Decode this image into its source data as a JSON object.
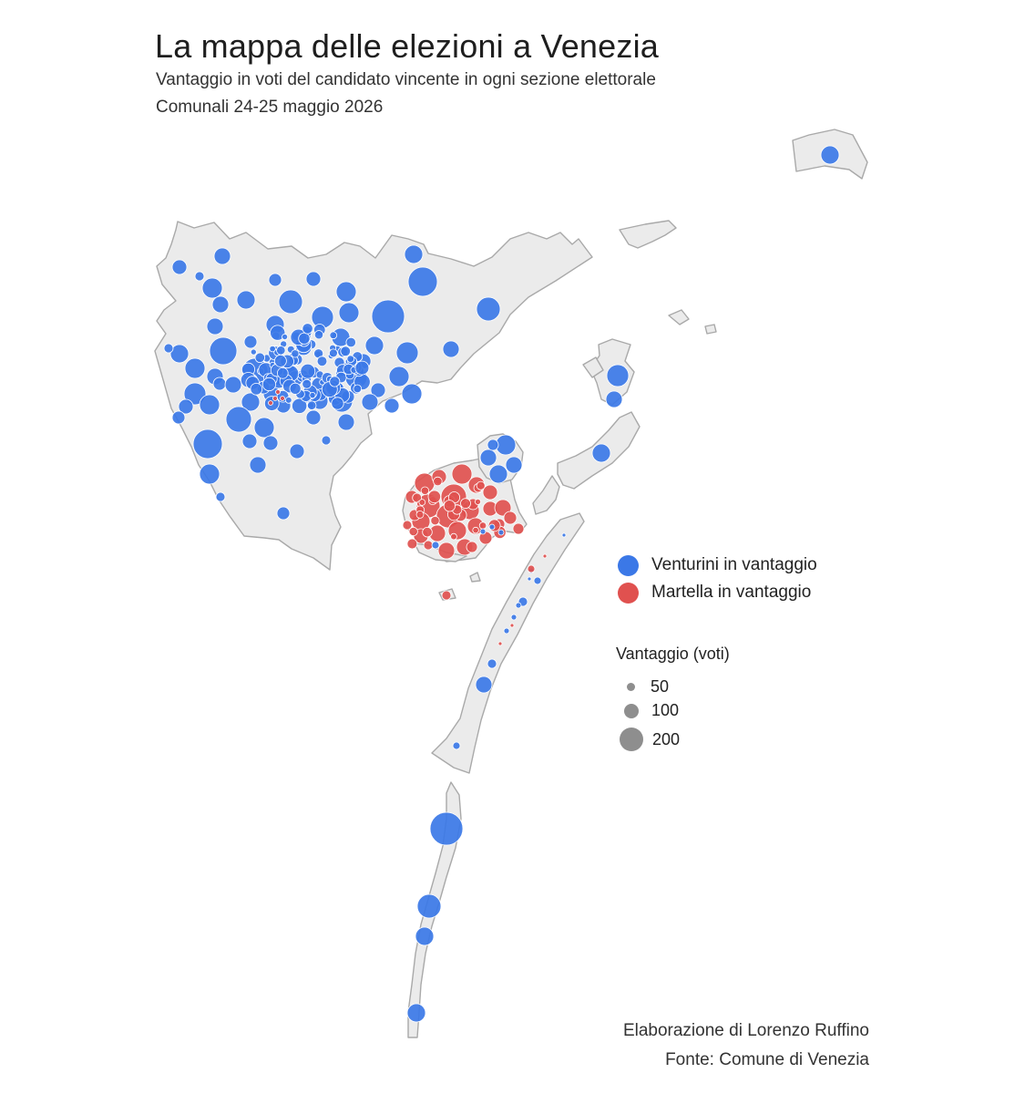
{
  "title": "La mappa delle elezioni a Venezia",
  "subtitle": "Vantaggio in voti del candidato vincente in ogni sezione elettorale",
  "subtitle2": "Comunali 24-25 maggio 2026",
  "legend": {
    "venturini": "Venturini in vantaggio",
    "martella": "Martella in vantaggio",
    "size_title": "Vantaggio (voti)",
    "size_50": "50",
    "size_100": "100",
    "size_200": "200"
  },
  "credits": {
    "author": "Elaborazione di Lorenzo Ruffino",
    "source": "Fonte: Comune di Venezia"
  },
  "colors": {
    "venturini": "#3b78e7",
    "martella": "#e0514f",
    "land": "#ebebeb",
    "size_key": "#8e8e8e"
  }
}
